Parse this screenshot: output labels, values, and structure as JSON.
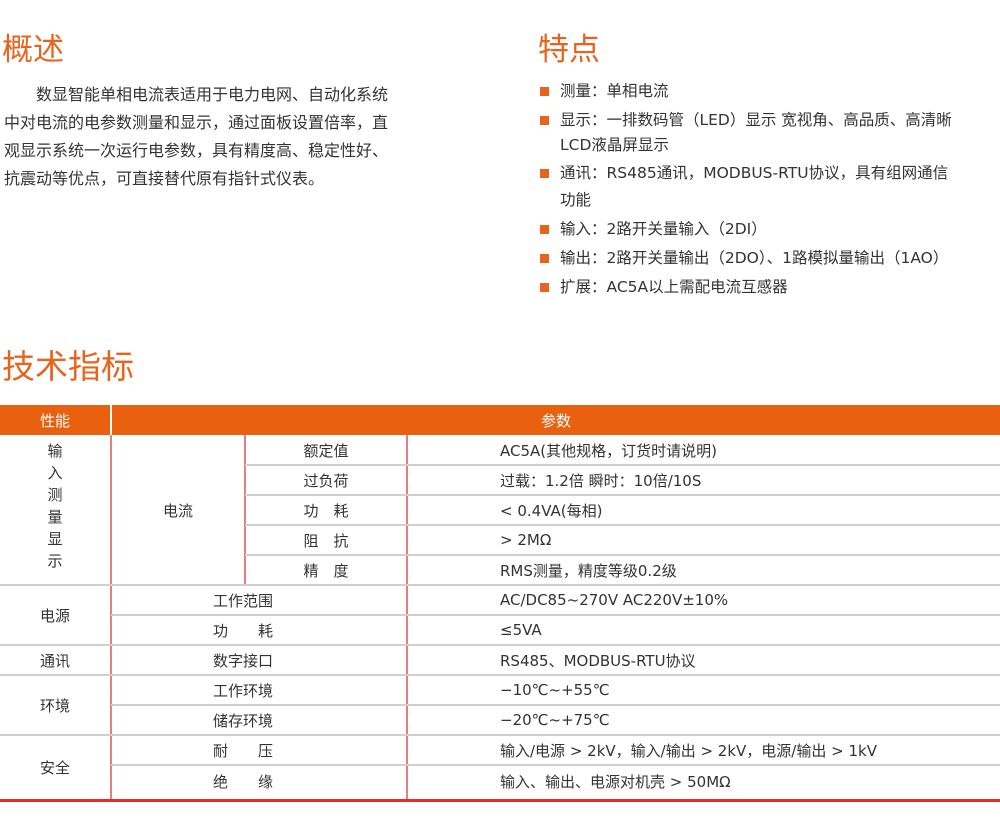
{
  "overview": {
    "title": "概述",
    "lines": [
      "数显智能单相电流表适用于电力电网、自动化系统",
      "中对电流的电参数测量和显示，通过面板设置倍率，直",
      "观显示系统一次运行电参数，具有精度高、稳定性好、",
      "抗震动等优点，可直接替代原有指针式仪表。"
    ]
  },
  "features": {
    "title": "特点",
    "items": [
      {
        "lines": [
          "测量：单相电流"
        ]
      },
      {
        "lines": [
          "显示：一排数码管（LED）显示  宽视角、高品质、高清晰",
          "LCD液晶屏显示"
        ]
      },
      {
        "lines": [
          "通讯：RS485通讯，MODBUS-RTU协议，具有组网通信",
          "功能"
        ]
      },
      {
        "lines": [
          "输入：2路开关量输入（2DI）"
        ]
      },
      {
        "lines": [
          "输出：2路开关量输出（2DO）、1路模拟量输出（1AO）"
        ]
      },
      {
        "lines": [
          "扩展：AC5A以上需配电流互感器"
        ]
      }
    ]
  },
  "specs": {
    "title": "技术指标",
    "header": {
      "col1": "性能",
      "col2": "参数"
    },
    "groups": {
      "input": {
        "label": "输入测量显示",
        "chars": [
          "输",
          "入",
          "测",
          "量",
          "显",
          "示"
        ],
        "sub": "电流",
        "rows": [
          {
            "name": "额定值",
            "value": "AC5A(其他规格，订货时请说明)"
          },
          {
            "name": "过负荷",
            "value": "过载：1.2倍    瞬时：10倍/10S"
          },
          {
            "name": "功　耗",
            "value": "< 0.4VA(每相)"
          },
          {
            "name": "阻　抗",
            "value": "> 2MΩ"
          },
          {
            "name": "精　度",
            "value": "RMS测量，精度等级0.2级"
          }
        ]
      },
      "power": {
        "label": "电源",
        "rows": [
          {
            "name": "工作范围",
            "value": "AC/DC85~270V   AC220V±10%"
          },
          {
            "name": "功　　耗",
            "value": "≤5VA"
          }
        ]
      },
      "comm": {
        "label": "通讯",
        "rows": [
          {
            "name": "数字接口",
            "value": "RS485、MODBUS-RTU协议"
          }
        ]
      },
      "env": {
        "label": "环境",
        "rows": [
          {
            "name": "工作环境",
            "value": "−10℃~+55℃"
          },
          {
            "name": "储存环境",
            "value": "−20℃~+75℃"
          }
        ]
      },
      "safety": {
        "label": "安全",
        "rows": [
          {
            "name": "耐　　压",
            "value": "输入/电源 > 2kV，输入/输出 > 2kV，电源/输出 > 1kV"
          },
          {
            "name": "绝　　缘",
            "value": "输入、输出、电源对机壳 > 50MΩ"
          }
        ]
      }
    }
  },
  "colors": {
    "accent": "#e8641c",
    "header_bg": "#e9600e",
    "divider": "#ea7d84",
    "bottom_rule": "#e52b2f"
  }
}
